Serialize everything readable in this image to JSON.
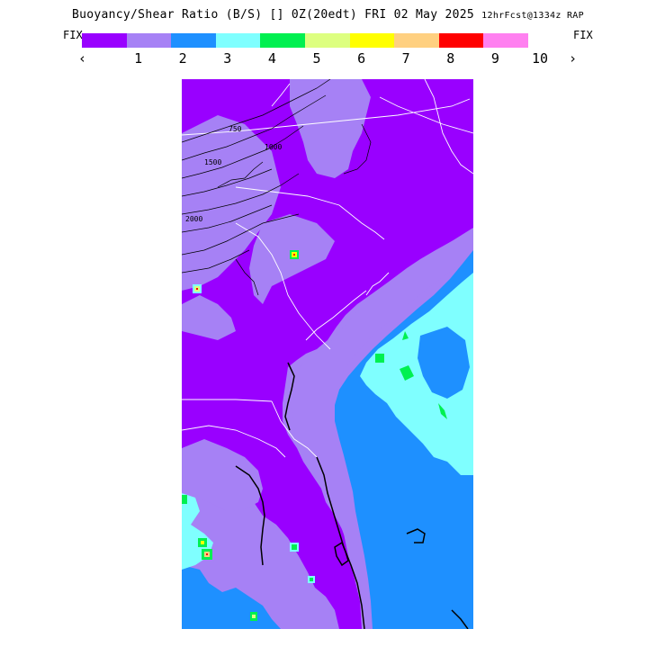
{
  "header": {
    "title_main": "Buoyancy/Shear Ratio (B/S)",
    "time_block": "[] 0Z(20edt) FRI 02 May 2025",
    "fcst": "12hrFcst@1334z RAP"
  },
  "colorbar": {
    "fix_left": "FIX",
    "fix_right": "FIX",
    "prev_arrow": "‹",
    "next_arrow": "›",
    "colors": [
      "#9900ff",
      "#a681f5",
      "#1e90ff",
      "#7fffff",
      "#00f050",
      "#ddff80",
      "#ffff00",
      "#ffd080",
      "#ff0000",
      "#ff80f0"
    ],
    "tick_labels": [
      "1",
      "2",
      "3",
      "4",
      "5",
      "6",
      "7",
      "8",
      "9",
      "10"
    ]
  },
  "map": {
    "contour_labels": [
      "750",
      "1000",
      "1500",
      "2000"
    ],
    "state_labels": []
  }
}
